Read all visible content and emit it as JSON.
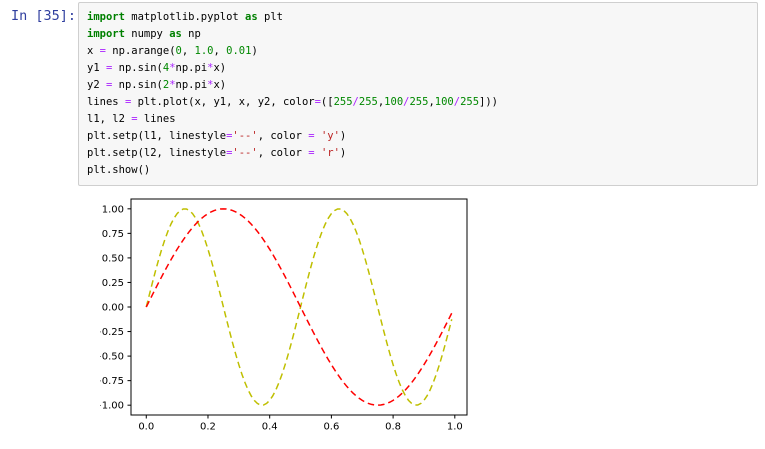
{
  "colors": {
    "page_bg": "#ffffff",
    "cell_bg": "#f7f7f7",
    "cell_border": "#cfcfcf",
    "prompt": "#303F9F",
    "syntax_keyword": "#008000",
    "syntax_number": "#008800",
    "syntax_operator": "#AA22FF",
    "syntax_string": "#BA2121",
    "syntax_plain": "#000000"
  },
  "notebook": {
    "cell": {
      "prompt": "In [35]:",
      "code_lines": [
        [
          {
            "c": "kw",
            "t": "import"
          },
          {
            "c": "pl",
            "t": " matplotlib.pyplot "
          },
          {
            "c": "kw",
            "t": "as"
          },
          {
            "c": "pl",
            "t": " plt"
          }
        ],
        [
          {
            "c": "kw",
            "t": "import"
          },
          {
            "c": "pl",
            "t": " numpy "
          },
          {
            "c": "kw",
            "t": "as"
          },
          {
            "c": "pl",
            "t": " np"
          }
        ],
        [
          {
            "c": "pl",
            "t": "x "
          },
          {
            "c": "op",
            "t": "="
          },
          {
            "c": "pl",
            "t": " np.arange("
          },
          {
            "c": "num",
            "t": "0"
          },
          {
            "c": "pl",
            "t": ", "
          },
          {
            "c": "num",
            "t": "1.0"
          },
          {
            "c": "pl",
            "t": ", "
          },
          {
            "c": "num",
            "t": "0.01"
          },
          {
            "c": "pl",
            "t": ")"
          }
        ],
        [
          {
            "c": "pl",
            "t": "y1 "
          },
          {
            "c": "op",
            "t": "="
          },
          {
            "c": "pl",
            "t": " np.sin("
          },
          {
            "c": "num",
            "t": "4"
          },
          {
            "c": "op",
            "t": "*"
          },
          {
            "c": "pl",
            "t": "np.pi"
          },
          {
            "c": "op",
            "t": "*"
          },
          {
            "c": "pl",
            "t": "x)"
          }
        ],
        [
          {
            "c": "pl",
            "t": "y2 "
          },
          {
            "c": "op",
            "t": "="
          },
          {
            "c": "pl",
            "t": " np.sin("
          },
          {
            "c": "num",
            "t": "2"
          },
          {
            "c": "op",
            "t": "*"
          },
          {
            "c": "pl",
            "t": "np.pi"
          },
          {
            "c": "op",
            "t": "*"
          },
          {
            "c": "pl",
            "t": "x)"
          }
        ],
        [
          {
            "c": "pl",
            "t": "lines "
          },
          {
            "c": "op",
            "t": "="
          },
          {
            "c": "pl",
            "t": " plt.plot(x, y1, x, y2, color"
          },
          {
            "c": "op",
            "t": "="
          },
          {
            "c": "pl",
            "t": "(["
          },
          {
            "c": "num",
            "t": "255"
          },
          {
            "c": "op",
            "t": "/"
          },
          {
            "c": "num",
            "t": "255"
          },
          {
            "c": "pl",
            "t": ","
          },
          {
            "c": "num",
            "t": "100"
          },
          {
            "c": "op",
            "t": "/"
          },
          {
            "c": "num",
            "t": "255"
          },
          {
            "c": "pl",
            "t": ","
          },
          {
            "c": "num",
            "t": "100"
          },
          {
            "c": "op",
            "t": "/"
          },
          {
            "c": "num",
            "t": "255"
          },
          {
            "c": "pl",
            "t": "]))"
          }
        ],
        [
          {
            "c": "pl",
            "t": "l1, l2 "
          },
          {
            "c": "op",
            "t": "="
          },
          {
            "c": "pl",
            "t": " lines"
          }
        ],
        [
          {
            "c": "pl",
            "t": "plt.setp(l1, linestyle"
          },
          {
            "c": "op",
            "t": "="
          },
          {
            "c": "str",
            "t": "'--'"
          },
          {
            "c": "pl",
            "t": ", color "
          },
          {
            "c": "op",
            "t": "="
          },
          {
            "c": "pl",
            "t": " "
          },
          {
            "c": "str",
            "t": "'y'"
          },
          {
            "c": "pl",
            "t": ")"
          }
        ],
        [
          {
            "c": "pl",
            "t": "plt.setp(l2, linestyle"
          },
          {
            "c": "op",
            "t": "="
          },
          {
            "c": "str",
            "t": "'--'"
          },
          {
            "c": "pl",
            "t": ", color "
          },
          {
            "c": "op",
            "t": "="
          },
          {
            "c": "pl",
            "t": " "
          },
          {
            "c": "str",
            "t": "'r'"
          },
          {
            "c": "pl",
            "t": ")"
          }
        ],
        [
          {
            "c": "pl",
            "t": "plt.show()"
          }
        ]
      ]
    }
  },
  "chart_data": {
    "type": "line",
    "title": "",
    "xlabel": "",
    "ylabel": "",
    "grid": false,
    "x_start": 0,
    "x_stop": 1.0,
    "x_step": 0.01,
    "xlim": [
      -0.0495,
      1.0395
    ],
    "ylim": [
      -1.1,
      1.1
    ],
    "xtick_values": [
      0.0,
      0.2,
      0.4,
      0.6,
      0.8,
      1.0
    ],
    "xtick_labels": [
      "0.0",
      "0.2",
      "0.4",
      "0.6",
      "0.8",
      "1.0"
    ],
    "ytick_values": [
      -1.0,
      -0.75,
      -0.5,
      -0.25,
      0.0,
      0.25,
      0.5,
      0.75,
      1.0
    ],
    "ytick_labels": [
      "−1.00",
      "−0.75",
      "−0.50",
      "−0.25",
      "0.00",
      "0.25",
      "0.50",
      "0.75",
      "1.00"
    ],
    "series": [
      {
        "name": "y1",
        "formula": "sin(4*pi*x)",
        "sine_pi_multiple": 4,
        "amplitude": 1,
        "color": "#bfbf00",
        "linestyle": "dashed"
      },
      {
        "name": "y2",
        "formula": "sin(2*pi*x)",
        "sine_pi_multiple": 2,
        "amplitude": 1,
        "color": "#ff0000",
        "linestyle": "dashed"
      }
    ]
  }
}
